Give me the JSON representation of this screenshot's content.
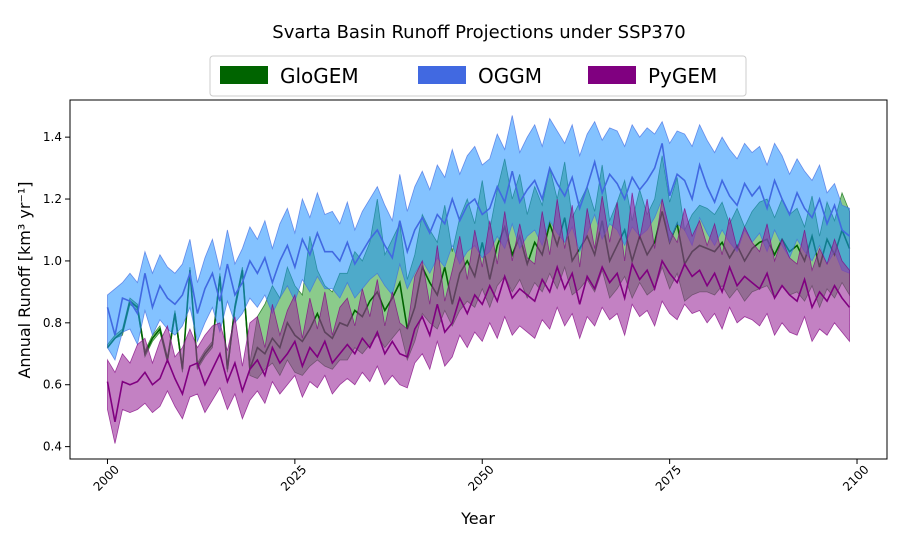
{
  "chart_data": {
    "type": "area",
    "title": "Svarta Basin Runoff Projections under SSP370",
    "xlabel": "Year",
    "ylabel": "Annual Runoff [km³ yr⁻¹]",
    "xlim": [
      1995,
      2104
    ],
    "ylim": [
      0.36,
      1.52
    ],
    "x_ticks": [
      2000,
      2025,
      2050,
      2075,
      2100
    ],
    "y_ticks": [
      0.4,
      0.6,
      0.8,
      1.0,
      1.2,
      1.4
    ],
    "x_tick_labels": [
      "2000",
      "2025",
      "2050",
      "2075",
      "2100"
    ],
    "y_tick_labels": [
      "0.4",
      "0.6",
      "0.8",
      "1.0",
      "1.2",
      "1.4"
    ],
    "grid": false,
    "legend_position": "top-center",
    "x_start": 2000,
    "x_end": 2099,
    "series": [
      {
        "name": "GloGEM",
        "line_color": "#006400",
        "fill_color": "#2ca02c",
        "fill_opacity": 0.55,
        "mean": [
          0.72,
          0.75,
          0.77,
          0.87,
          0.85,
          0.7,
          0.75,
          0.78,
          0.68,
          0.83,
          0.65,
          0.97,
          0.66,
          0.7,
          0.73,
          0.95,
          0.65,
          0.85,
          0.97,
          0.65,
          0.72,
          0.7,
          0.75,
          0.72,
          0.8,
          0.76,
          0.74,
          0.78,
          0.83,
          0.77,
          0.75,
          0.8,
          0.79,
          0.84,
          0.82,
          0.87,
          0.9,
          0.84,
          0.88,
          0.93,
          0.78,
          0.85,
          0.98,
          0.93,
          0.89,
          0.98,
          0.86,
          0.96,
          1.0,
          0.95,
          1.06,
          0.94,
          1.05,
          1.11,
          1.02,
          1.08,
          0.99,
          1.06,
          1.02,
          1.12,
          1.05,
          1.14,
          1.0,
          1.04,
          1.08,
          1.02,
          1.13,
          1.0,
          1.05,
          1.1,
          1.0,
          1.08,
          1.02,
          1.06,
          1.16,
          1.06,
          1.12,
          0.99,
          1.03,
          1.05,
          1.04,
          1.03,
          1.06,
          1.01,
          1.05,
          1.0,
          1.04,
          1.06,
          1.07,
          1.02,
          1.07,
          1.03,
          1.05,
          1.0,
          1.08,
          0.98,
          1.07,
          1.02,
          1.1,
          1.04
        ],
        "lower": [
          0.72,
          0.75,
          0.76,
          0.86,
          0.84,
          0.69,
          0.74,
          0.77,
          0.67,
          0.82,
          0.64,
          0.96,
          0.65,
          0.69,
          0.72,
          0.94,
          0.64,
          0.84,
          0.96,
          0.63,
          0.62,
          0.65,
          0.67,
          0.63,
          0.68,
          0.64,
          0.63,
          0.66,
          0.68,
          0.66,
          0.65,
          0.68,
          0.68,
          0.72,
          0.7,
          0.73,
          0.76,
          0.72,
          0.75,
          0.78,
          0.68,
          0.74,
          0.83,
          0.8,
          0.78,
          0.84,
          0.79,
          0.84,
          0.87,
          0.85,
          0.91,
          0.85,
          0.92,
          0.95,
          0.9,
          0.94,
          0.88,
          0.93,
          0.9,
          0.96,
          0.91,
          0.98,
          0.89,
          0.91,
          0.94,
          0.9,
          0.97,
          0.88,
          0.91,
          0.95,
          0.88,
          0.93,
          0.89,
          0.91,
          0.98,
          0.91,
          0.96,
          0.87,
          0.89,
          0.9,
          0.9,
          0.89,
          0.92,
          0.88,
          0.91,
          0.87,
          0.9,
          0.91,
          0.92,
          0.88,
          0.92,
          0.89,
          0.9,
          0.87,
          0.92,
          0.85,
          0.91,
          0.88,
          0.93,
          0.89
        ],
        "upper": [
          0.73,
          0.76,
          0.78,
          0.88,
          0.86,
          0.71,
          0.76,
          0.79,
          0.69,
          0.84,
          0.66,
          0.98,
          0.67,
          0.71,
          0.74,
          0.96,
          0.66,
          0.86,
          0.98,
          0.67,
          0.82,
          0.86,
          0.92,
          0.88,
          0.98,
          0.92,
          0.89,
          1.08,
          0.97,
          0.92,
          0.9,
          0.96,
          0.96,
          1.03,
          1.0,
          1.06,
          1.2,
          1.02,
          1.07,
          1.12,
          0.94,
          1.02,
          1.15,
          1.1,
          1.06,
          1.18,
          1.03,
          1.14,
          1.2,
          1.12,
          1.26,
          1.1,
          1.23,
          1.33,
          1.2,
          1.28,
          1.15,
          1.24,
          1.18,
          1.3,
          1.2,
          1.32,
          1.14,
          1.19,
          1.24,
          1.16,
          1.31,
          1.13,
          1.19,
          1.26,
          1.13,
          1.23,
          1.15,
          1.2,
          1.34,
          1.19,
          1.27,
          1.1,
          1.15,
          1.18,
          1.17,
          1.15,
          1.19,
          1.12,
          1.17,
          1.11,
          1.16,
          1.19,
          1.2,
          1.14,
          1.2,
          1.15,
          1.17,
          1.11,
          1.21,
          1.08,
          1.19,
          1.13,
          1.22,
          1.16
        ]
      },
      {
        "name": "OGGM",
        "line_color": "#4169e1",
        "fill_color": "#1e90ff",
        "fill_opacity": 0.55,
        "mean": [
          0.85,
          0.76,
          0.88,
          0.87,
          0.83,
          0.96,
          0.85,
          0.92,
          0.88,
          0.86,
          0.89,
          0.96,
          0.83,
          0.91,
          0.96,
          0.87,
          0.99,
          0.89,
          0.93,
          1.0,
          0.96,
          1.01,
          0.93,
          1.0,
          1.05,
          0.98,
          1.07,
          1.02,
          1.09,
          1.03,
          1.03,
          1.0,
          1.06,
          0.99,
          1.03,
          1.07,
          1.1,
          1.05,
          1.01,
          1.13,
          1.03,
          1.1,
          1.14,
          1.09,
          1.15,
          1.12,
          1.2,
          1.13,
          1.18,
          1.2,
          1.15,
          1.17,
          1.24,
          1.19,
          1.29,
          1.19,
          1.23,
          1.26,
          1.2,
          1.3,
          1.25,
          1.21,
          1.27,
          1.17,
          1.24,
          1.32,
          1.22,
          1.28,
          1.25,
          1.2,
          1.27,
          1.23,
          1.26,
          1.3,
          1.38,
          1.21,
          1.28,
          1.26,
          1.2,
          1.31,
          1.24,
          1.19,
          1.26,
          1.21,
          1.18,
          1.25,
          1.21,
          1.24,
          1.17,
          1.26,
          1.2,
          1.15,
          1.22,
          1.17,
          1.14,
          1.2,
          1.12,
          1.18,
          1.1,
          1.08
        ],
        "lower": [
          0.72,
          0.68,
          0.77,
          0.78,
          0.73,
          0.84,
          0.76,
          0.81,
          0.78,
          0.76,
          0.79,
          0.85,
          0.74,
          0.8,
          0.85,
          0.77,
          0.87,
          0.8,
          0.83,
          0.88,
          0.85,
          0.89,
          0.83,
          0.88,
          0.92,
          0.87,
          0.94,
          0.9,
          0.95,
          0.91,
          0.91,
          0.88,
          0.93,
          0.88,
          0.91,
          0.94,
          0.96,
          0.92,
          0.89,
          0.99,
          0.91,
          0.96,
          1.0,
          0.96,
          1.01,
          0.98,
          1.05,
          0.99,
          1.03,
          1.05,
          1.01,
          1.03,
          1.08,
          1.04,
          1.12,
          1.04,
          1.08,
          1.1,
          1.05,
          1.13,
          1.09,
          1.06,
          1.11,
          1.03,
          1.09,
          1.15,
          1.07,
          1.12,
          1.1,
          1.05,
          1.11,
          1.08,
          1.1,
          1.14,
          1.2,
          1.06,
          1.12,
          1.1,
          1.05,
          1.14,
          1.09,
          1.05,
          1.1,
          1.06,
          1.03,
          1.1,
          1.06,
          1.09,
          1.03,
          1.1,
          1.05,
          1.01,
          1.07,
          1.03,
          1.0,
          1.05,
          0.99,
          1.03,
          0.97,
          0.96
        ],
        "upper": [
          0.89,
          0.91,
          0.93,
          0.96,
          0.93,
          1.03,
          0.96,
          1.02,
          0.98,
          0.96,
          0.99,
          1.07,
          0.93,
          1.01,
          1.07,
          0.97,
          1.1,
          0.99,
          1.04,
          1.11,
          1.07,
          1.13,
          1.04,
          1.12,
          1.17,
          1.09,
          1.2,
          1.14,
          1.22,
          1.15,
          1.16,
          1.12,
          1.19,
          1.1,
          1.16,
          1.2,
          1.24,
          1.18,
          1.13,
          1.28,
          1.16,
          1.24,
          1.29,
          1.23,
          1.31,
          1.27,
          1.36,
          1.28,
          1.34,
          1.37,
          1.31,
          1.33,
          1.41,
          1.36,
          1.47,
          1.35,
          1.4,
          1.44,
          1.37,
          1.46,
          1.42,
          1.38,
          1.44,
          1.34,
          1.41,
          1.45,
          1.39,
          1.43,
          1.42,
          1.37,
          1.44,
          1.4,
          1.43,
          1.41,
          1.45,
          1.38,
          1.42,
          1.41,
          1.37,
          1.44,
          1.39,
          1.35,
          1.4,
          1.36,
          1.33,
          1.38,
          1.35,
          1.37,
          1.31,
          1.38,
          1.34,
          1.28,
          1.33,
          1.29,
          1.26,
          1.31,
          1.22,
          1.25,
          1.18,
          1.17
        ]
      },
      {
        "name": "PyGEM",
        "line_color": "#800080",
        "fill_color": "#9b2d9b",
        "fill_opacity": 0.6,
        "mean": [
          0.61,
          0.48,
          0.61,
          0.6,
          0.61,
          0.64,
          0.6,
          0.62,
          0.68,
          0.62,
          0.57,
          0.66,
          0.67,
          0.6,
          0.65,
          0.7,
          0.61,
          0.67,
          0.58,
          0.65,
          0.68,
          0.63,
          0.72,
          0.67,
          0.7,
          0.74,
          0.66,
          0.72,
          0.69,
          0.74,
          0.67,
          0.7,
          0.73,
          0.7,
          0.75,
          0.72,
          0.77,
          0.7,
          0.74,
          0.7,
          0.69,
          0.78,
          0.82,
          0.76,
          0.86,
          0.77,
          0.8,
          0.88,
          0.83,
          0.89,
          0.86,
          0.92,
          0.87,
          0.95,
          0.88,
          0.91,
          0.89,
          0.87,
          0.94,
          0.9,
          0.98,
          0.91,
          0.96,
          0.86,
          0.95,
          0.91,
          0.98,
          0.93,
          0.96,
          0.88,
          0.99,
          0.94,
          0.97,
          0.91,
          1.0,
          0.96,
          0.93,
          0.99,
          0.95,
          0.97,
          0.92,
          0.96,
          0.9,
          0.98,
          0.92,
          0.95,
          0.93,
          0.91,
          0.96,
          0.88,
          0.92,
          0.89,
          0.87,
          0.94,
          0.85,
          0.9,
          0.87,
          0.92,
          0.88,
          0.85
        ],
        "lower": [
          0.52,
          0.41,
          0.52,
          0.51,
          0.52,
          0.54,
          0.51,
          0.53,
          0.58,
          0.53,
          0.49,
          0.56,
          0.57,
          0.51,
          0.55,
          0.59,
          0.52,
          0.57,
          0.49,
          0.55,
          0.58,
          0.54,
          0.61,
          0.57,
          0.6,
          0.63,
          0.56,
          0.61,
          0.59,
          0.63,
          0.57,
          0.6,
          0.62,
          0.6,
          0.64,
          0.61,
          0.66,
          0.6,
          0.63,
          0.6,
          0.59,
          0.67,
          0.7,
          0.65,
          0.74,
          0.66,
          0.69,
          0.76,
          0.72,
          0.77,
          0.74,
          0.8,
          0.75,
          0.82,
          0.76,
          0.79,
          0.77,
          0.75,
          0.81,
          0.78,
          0.85,
          0.79,
          0.83,
          0.75,
          0.82,
          0.79,
          0.85,
          0.81,
          0.83,
          0.76,
          0.86,
          0.82,
          0.84,
          0.79,
          0.87,
          0.83,
          0.81,
          0.86,
          0.83,
          0.84,
          0.8,
          0.83,
          0.78,
          0.85,
          0.8,
          0.82,
          0.81,
          0.79,
          0.83,
          0.76,
          0.8,
          0.77,
          0.76,
          0.82,
          0.74,
          0.78,
          0.76,
          0.8,
          0.77,
          0.74
        ],
        "upper": [
          0.68,
          0.64,
          0.7,
          0.67,
          0.73,
          0.75,
          0.67,
          0.74,
          0.79,
          0.69,
          0.72,
          0.78,
          0.72,
          0.76,
          0.79,
          0.8,
          0.71,
          0.82,
          0.66,
          0.8,
          0.82,
          0.72,
          0.86,
          0.76,
          0.84,
          0.89,
          0.75,
          0.88,
          0.78,
          0.9,
          0.76,
          0.85,
          0.88,
          0.79,
          0.91,
          0.82,
          0.94,
          0.79,
          0.9,
          0.8,
          0.78,
          0.95,
          1.0,
          0.86,
          1.05,
          0.87,
          0.97,
          1.08,
          0.94,
          1.1,
          0.98,
          1.13,
          0.99,
          1.16,
          1.0,
          1.12,
          1.01,
          0.99,
          1.16,
          1.02,
          1.2,
          1.04,
          1.18,
          0.98,
          1.17,
          1.04,
          1.21,
          1.06,
          1.19,
          1.0,
          1.22,
          1.07,
          1.2,
          1.04,
          1.2,
          1.1,
          1.06,
          1.17,
          1.08,
          1.13,
          1.05,
          1.12,
          1.02,
          1.14,
          1.04,
          1.11,
          1.06,
          1.03,
          1.12,
          1.0,
          1.07,
          1.01,
          0.99,
          1.1,
          0.97,
          1.04,
          0.99,
          1.07,
          1.0,
          0.97
        ]
      }
    ]
  }
}
